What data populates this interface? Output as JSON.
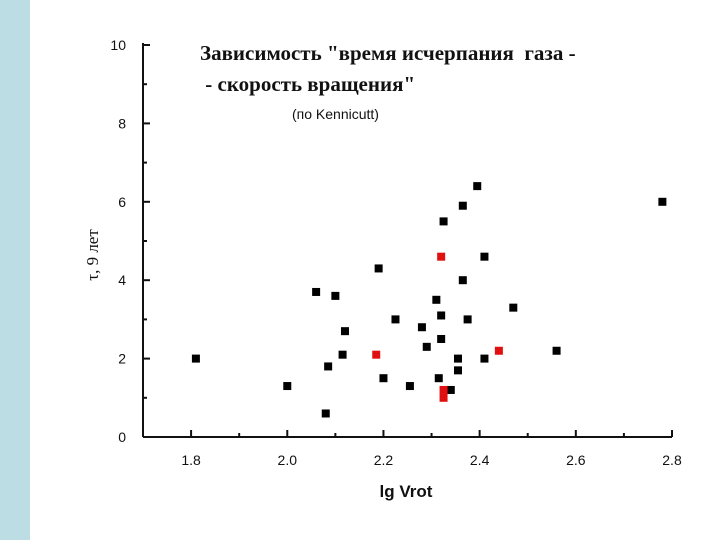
{
  "chart_data": {
    "type": "scatter",
    "title": "Зависимость \"время исчерпания  газа -\n - скорость вращения\"",
    "subtitle": "(по Kennicutt)",
    "xlabel": "lg Vrot",
    "ylabel": "τ, 9 лет",
    "xlim": [
      1.7,
      2.8
    ],
    "ylim": [
      0,
      10
    ],
    "x_ticks": [
      1.8,
      2.0,
      2.2,
      2.4,
      2.6,
      2.8
    ],
    "x_tick_labels": [
      "1.8",
      "2.0",
      "2.2",
      "2.4",
      "2.6",
      "2.8"
    ],
    "y_ticks": [
      0,
      2,
      4,
      6,
      8,
      10
    ],
    "y_tick_labels": [
      "0",
      "2",
      "4",
      "6",
      "8",
      "10"
    ],
    "grid": false,
    "colors": {
      "black_points": "#000000",
      "red_points": "#e01010",
      "background_band": "#bcdde3"
    },
    "series": [
      {
        "color": "#000000",
        "points": [
          [
            1.81,
            2.0
          ],
          [
            2.0,
            1.3
          ],
          [
            2.06,
            3.7
          ],
          [
            2.08,
            0.6
          ],
          [
            2.085,
            1.8
          ],
          [
            2.1,
            3.6
          ],
          [
            2.115,
            2.1
          ],
          [
            2.12,
            2.7
          ],
          [
            2.19,
            4.3
          ],
          [
            2.2,
            1.5
          ],
          [
            2.225,
            3.0
          ],
          [
            2.255,
            1.3
          ],
          [
            2.28,
            2.8
          ],
          [
            2.29,
            2.3
          ],
          [
            2.31,
            3.5
          ],
          [
            2.315,
            1.5
          ],
          [
            2.32,
            3.1
          ],
          [
            2.32,
            2.5
          ],
          [
            2.325,
            5.5
          ],
          [
            2.34,
            1.2
          ],
          [
            2.355,
            2.0
          ],
          [
            2.355,
            1.7
          ],
          [
            2.365,
            5.9
          ],
          [
            2.365,
            4.0
          ],
          [
            2.375,
            3.0
          ],
          [
            2.395,
            6.4
          ],
          [
            2.41,
            4.6
          ],
          [
            2.41,
            2.0
          ],
          [
            2.47,
            3.3
          ],
          [
            2.56,
            2.2
          ],
          [
            2.78,
            6.0
          ]
        ]
      },
      {
        "color": "#e01010",
        "points": [
          [
            2.185,
            2.1
          ],
          [
            2.32,
            4.6
          ],
          [
            2.44,
            2.2
          ],
          [
            2.325,
            1.2
          ],
          [
            2.325,
            1.0
          ]
        ]
      }
    ]
  }
}
